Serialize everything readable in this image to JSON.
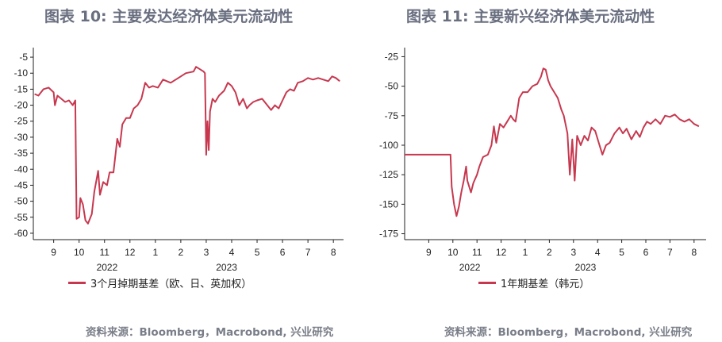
{
  "colors": {
    "series": "#c7384f",
    "axis": "#222222",
    "title": "#6a6f80",
    "source": "#7a7e88"
  },
  "footer": {
    "source_left": "资料来源：Bloomberg，Macrobond, 兴业研究",
    "source_right": "资料来源：Bloomberg，Macrobond, 兴业研究"
  },
  "chart_data": [
    {
      "type": "line",
      "title": "图表 10: 主要发达经济体美元流动性",
      "x_tick_labels": [
        "9",
        "10",
        "11",
        "12",
        "1",
        "2",
        "3",
        "4",
        "5",
        "6",
        "7",
        "8"
      ],
      "x_year_labels": [
        "2022",
        "2023"
      ],
      "y_ticks": [
        -5,
        -10,
        -15,
        -20,
        -25,
        -30,
        -35,
        -40,
        -45,
        -50,
        -55,
        -60
      ],
      "ylim": [
        -62,
        -3
      ],
      "xlim": [
        8.2,
        20.4
      ],
      "legend_position": "bottom-left",
      "series": [
        {
          "name": "3个月掉期基差（欧、日、英加权）",
          "points": [
            [
              8.25,
              -16.5
            ],
            [
              8.4,
              -17
            ],
            [
              8.6,
              -15
            ],
            [
              8.8,
              -14.5
            ],
            [
              9.0,
              -16
            ],
            [
              9.05,
              -20
            ],
            [
              9.15,
              -17
            ],
            [
              9.3,
              -18
            ],
            [
              9.45,
              -19
            ],
            [
              9.6,
              -18.5
            ],
            [
              9.75,
              -20
            ],
            [
              9.85,
              -18.5
            ],
            [
              9.9,
              -55.5
            ],
            [
              10.0,
              -55
            ],
            [
              10.05,
              -49
            ],
            [
              10.15,
              -51
            ],
            [
              10.25,
              -56
            ],
            [
              10.35,
              -57
            ],
            [
              10.5,
              -54
            ],
            [
              10.6,
              -47
            ],
            [
              10.75,
              -40.5
            ],
            [
              10.82,
              -48
            ],
            [
              10.95,
              -44
            ],
            [
              11.1,
              -45
            ],
            [
              11.2,
              -41
            ],
            [
              11.35,
              -41
            ],
            [
              11.5,
              -30.5
            ],
            [
              11.6,
              -33
            ],
            [
              11.7,
              -26
            ],
            [
              11.85,
              -24
            ],
            [
              12.0,
              -24
            ],
            [
              12.15,
              -21
            ],
            [
              12.3,
              -20
            ],
            [
              12.45,
              -18
            ],
            [
              12.6,
              -13
            ],
            [
              12.75,
              -14.5
            ],
            [
              12.9,
              -14
            ],
            [
              13.1,
              -14.5
            ],
            [
              13.3,
              -12
            ],
            [
              13.6,
              -13
            ],
            [
              13.9,
              -11.5
            ],
            [
              14.2,
              -10
            ],
            [
              14.5,
              -9.5
            ],
            [
              14.6,
              -8
            ],
            [
              14.8,
              -9
            ],
            [
              14.9,
              -9.5
            ],
            [
              14.95,
              -10
            ],
            [
              15.0,
              -35.5
            ],
            [
              15.05,
              -25
            ],
            [
              15.1,
              -34
            ],
            [
              15.15,
              -22
            ],
            [
              15.25,
              -18
            ],
            [
              15.35,
              -19
            ],
            [
              15.5,
              -17
            ],
            [
              15.7,
              -15.5
            ],
            [
              15.85,
              -13
            ],
            [
              16.0,
              -14
            ],
            [
              16.15,
              -16
            ],
            [
              16.3,
              -20
            ],
            [
              16.45,
              -18
            ],
            [
              16.6,
              -21
            ],
            [
              16.7,
              -20
            ],
            [
              16.85,
              -19
            ],
            [
              17.0,
              -18.5
            ],
            [
              17.2,
              -18
            ],
            [
              17.4,
              -20
            ],
            [
              17.55,
              -21.5
            ],
            [
              17.7,
              -20
            ],
            [
              17.85,
              -21
            ],
            [
              18.0,
              -18.5
            ],
            [
              18.15,
              -16
            ],
            [
              18.3,
              -15
            ],
            [
              18.45,
              -15.5
            ],
            [
              18.6,
              -13
            ],
            [
              18.8,
              -12.5
            ],
            [
              19.0,
              -11.5
            ],
            [
              19.2,
              -12
            ],
            [
              19.4,
              -11.5
            ],
            [
              19.6,
              -12
            ],
            [
              19.8,
              -12.5
            ],
            [
              19.95,
              -11
            ],
            [
              20.1,
              -11.5
            ],
            [
              20.25,
              -12.5
            ]
          ]
        }
      ]
    },
    {
      "type": "line",
      "title": "图表 11: 主要新兴经济体美元流动性",
      "x_tick_labels": [
        "9",
        "10",
        "11",
        "12",
        "1",
        "2",
        "3",
        "4",
        "5",
        "6",
        "7",
        "8"
      ],
      "x_year_labels": [
        "2022",
        "2023"
      ],
      "y_ticks": [
        -25,
        -50,
        -75,
        -100,
        -125,
        -150,
        -175
      ],
      "ylim": [
        -180,
        -20
      ],
      "xlim": [
        8.0,
        20.5
      ],
      "legend_position": "bottom-left",
      "series": [
        {
          "name": "1年期基差（韩元）",
          "points": [
            [
              8.0,
              -108
            ],
            [
              9.0,
              -108
            ],
            [
              9.5,
              -108
            ],
            [
              9.9,
              -108
            ],
            [
              9.95,
              -135
            ],
            [
              10.05,
              -150
            ],
            [
              10.15,
              -160
            ],
            [
              10.25,
              -152
            ],
            [
              10.35,
              -140
            ],
            [
              10.45,
              -130
            ],
            [
              10.55,
              -118
            ],
            [
              10.6,
              -130
            ],
            [
              10.75,
              -140
            ],
            [
              10.85,
              -132
            ],
            [
              11.0,
              -125
            ],
            [
              11.1,
              -118
            ],
            [
              11.25,
              -110
            ],
            [
              11.45,
              -108
            ],
            [
              11.6,
              -100
            ],
            [
              11.7,
              -84
            ],
            [
              11.8,
              -98
            ],
            [
              11.95,
              -82
            ],
            [
              12.1,
              -85
            ],
            [
              12.25,
              -80
            ],
            [
              12.4,
              -75
            ],
            [
              12.5,
              -78
            ],
            [
              12.6,
              -80
            ],
            [
              12.75,
              -60
            ],
            [
              12.9,
              -55
            ],
            [
              13.1,
              -55
            ],
            [
              13.3,
              -50
            ],
            [
              13.5,
              -48
            ],
            [
              13.65,
              -42
            ],
            [
              13.75,
              -35
            ],
            [
              13.85,
              -36
            ],
            [
              13.95,
              -45
            ],
            [
              14.05,
              -50
            ],
            [
              14.2,
              -55
            ],
            [
              14.35,
              -60
            ],
            [
              14.5,
              -70
            ],
            [
              14.6,
              -75
            ],
            [
              14.75,
              -90
            ],
            [
              14.85,
              -125
            ],
            [
              14.95,
              -95
            ],
            [
              15.05,
              -130
            ],
            [
              15.15,
              -92
            ],
            [
              15.3,
              -100
            ],
            [
              15.45,
              -92
            ],
            [
              15.6,
              -96
            ],
            [
              15.75,
              -85
            ],
            [
              15.9,
              -88
            ],
            [
              16.05,
              -98
            ],
            [
              16.2,
              -108
            ],
            [
              16.35,
              -100
            ],
            [
              16.5,
              -98
            ],
            [
              16.7,
              -90
            ],
            [
              16.9,
              -85
            ],
            [
              17.05,
              -90
            ],
            [
              17.2,
              -86
            ],
            [
              17.4,
              -95
            ],
            [
              17.6,
              -88
            ],
            [
              17.75,
              -93
            ],
            [
              17.9,
              -85
            ],
            [
              18.05,
              -80
            ],
            [
              18.2,
              -82
            ],
            [
              18.4,
              -78
            ],
            [
              18.6,
              -82
            ],
            [
              18.8,
              -75
            ],
            [
              19.0,
              -76
            ],
            [
              19.2,
              -74
            ],
            [
              19.4,
              -78
            ],
            [
              19.6,
              -80
            ],
            [
              19.8,
              -78
            ],
            [
              20.0,
              -82
            ],
            [
              20.2,
              -84
            ]
          ]
        }
      ]
    }
  ]
}
